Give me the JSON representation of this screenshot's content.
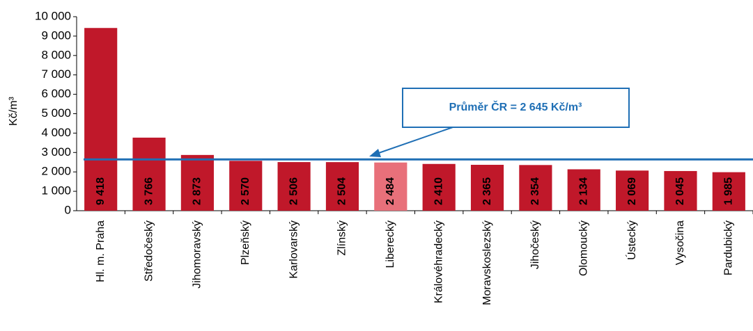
{
  "chart_data": {
    "type": "bar",
    "y_axis_label": "Kč/m³",
    "categories": [
      "Hl. m. Praha",
      "Středočeský",
      "Jihomoravský",
      "Plzeňský",
      "Karlovarský",
      "Zlínský",
      "Liberecký",
      "Královéhradecký",
      "Moravskoslezský",
      "Jihočeský",
      "Olomoucký",
      "Ústecký",
      "Vysočina",
      "Pardubický"
    ],
    "values": [
      9418,
      3766,
      2873,
      2570,
      2506,
      2504,
      2484,
      2410,
      2365,
      2354,
      2134,
      2069,
      2045,
      1985
    ],
    "value_labels": [
      "9 418",
      "3 766",
      "2 873",
      "2 570",
      "2 506",
      "2 504",
      "2 484",
      "2 410",
      "2 365",
      "2 354",
      "2 134",
      "2 069",
      "2 045",
      "1 985"
    ],
    "colors": [
      "#c0182a",
      "#c0182a",
      "#c0182a",
      "#c0182a",
      "#c0182a",
      "#c0182a",
      "#e8707a",
      "#c0182a",
      "#c0182a",
      "#c0182a",
      "#c0182a",
      "#c0182a",
      "#c0182a",
      "#c0182a"
    ],
    "ylim": [
      0,
      10000
    ],
    "yticks": [
      0,
      {
        "value": 1000,
        "label": "1 000"
      },
      {
        "value": 2000,
        "label": "2 000"
      },
      {
        "value": 3000,
        "label": "3 000"
      },
      {
        "value": 4000,
        "label": "4 000"
      },
      {
        "value": 5000,
        "label": "5 000"
      },
      {
        "value": 6000,
        "label": "6 000"
      },
      {
        "value": 7000,
        "label": "7 000"
      },
      {
        "value": 8000,
        "label": "8 000"
      },
      {
        "value": 9000,
        "label": "9 000"
      },
      {
        "value": 10000,
        "label": "10 000"
      }
    ],
    "average": {
      "value": 2645,
      "label": "Průměr ČR = 2 645 Kč/m³",
      "color": "#1f6fb5"
    }
  }
}
